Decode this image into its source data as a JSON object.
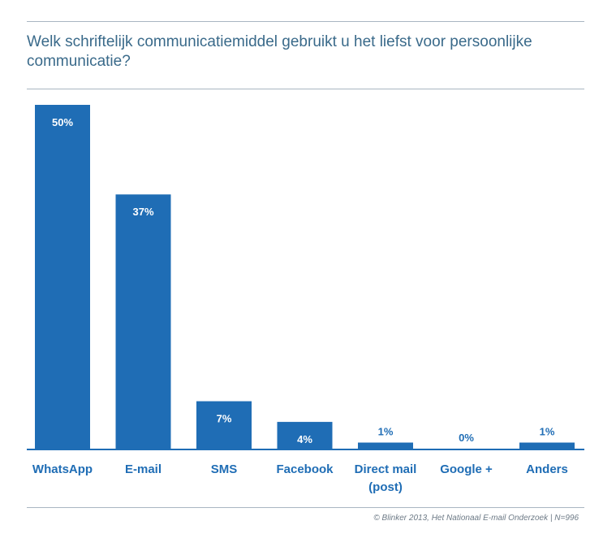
{
  "title": "Welk schriftelijk communicatiemiddel gebruikt u het liefst voor persoonlijke communicatie?",
  "source": "© Blinker 2013, Het Nationaal E-mail Onderzoek | N=996",
  "colors": {
    "bar": "#1f6db5",
    "axis": "#1f6db5",
    "label": "#1f6db5",
    "title": "#3a6a8a"
  },
  "chart_data": {
    "type": "bar",
    "categories": [
      "WhatsApp",
      "E-mail",
      "SMS",
      "Facebook",
      "Direct mail (post)",
      "Google +",
      "Anders"
    ],
    "category_lines": [
      [
        "WhatsApp"
      ],
      [
        "E-mail"
      ],
      [
        "SMS"
      ],
      [
        "Facebook"
      ],
      [
        "Direct mail",
        "(post)"
      ],
      [
        "Google +"
      ],
      [
        "Anders"
      ]
    ],
    "values": [
      50,
      37,
      7,
      4,
      1,
      0,
      1
    ],
    "value_labels": [
      "50%",
      "37%",
      "7%",
      "4%",
      "1%",
      "0%",
      "1%"
    ],
    "unit": "%",
    "ylim": [
      0,
      50
    ],
    "grid": false,
    "legend": "none"
  }
}
